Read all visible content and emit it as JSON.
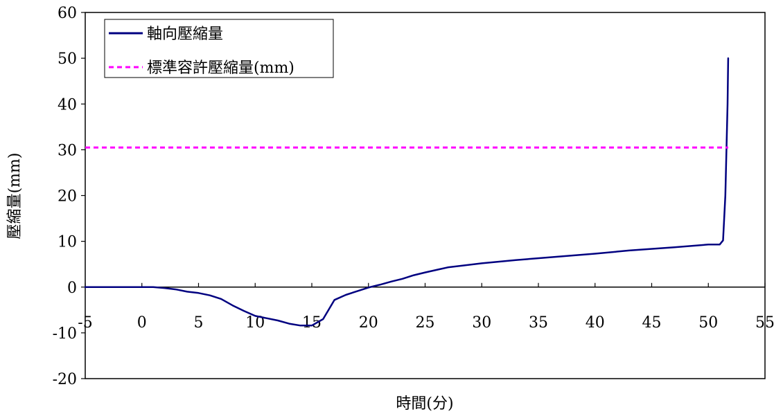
{
  "chart_data": {
    "type": "line",
    "xlabel": "時間(分)",
    "ylabel": "壓縮量(mm)",
    "xlim": [
      -5,
      55
    ],
    "ylim": [
      -20,
      60
    ],
    "x_ticks": [
      -5,
      0,
      5,
      10,
      15,
      20,
      25,
      30,
      35,
      40,
      45,
      50,
      55
    ],
    "y_ticks": [
      -20,
      -10,
      0,
      10,
      20,
      30,
      40,
      50,
      60
    ],
    "x_tick_labels": [
      "-5",
      "0",
      "5",
      "10",
      "15",
      "20",
      "25",
      "30",
      "35",
      "40",
      "45",
      "50",
      "55"
    ],
    "y_tick_labels": [
      "-20",
      "-10",
      "0",
      "10",
      "20",
      "30",
      "40",
      "50",
      "60"
    ],
    "grid": false,
    "legend_position": "top-left",
    "series": [
      {
        "name": "軸向壓縮量",
        "color": "#000080",
        "style": "solid",
        "x": [
          -5,
          0,
          1,
          2,
          3,
          4,
          5,
          6,
          7,
          8,
          9,
          10,
          11,
          12,
          13,
          14,
          15,
          16,
          17,
          18,
          19,
          20,
          21,
          22,
          23,
          24,
          25,
          27,
          30,
          33,
          36,
          40,
          43,
          47,
          50,
          50.5,
          51,
          51.3,
          51.5,
          51.6,
          51.7,
          51.75
        ],
        "y": [
          0,
          0,
          0,
          -0.2,
          -0.5,
          -1.0,
          -1.3,
          -1.8,
          -2.6,
          -4.0,
          -5.2,
          -6.3,
          -6.8,
          -7.3,
          -8.0,
          -8.4,
          -8.4,
          -7.0,
          -2.8,
          -1.7,
          -0.9,
          -0.1,
          0.5,
          1.2,
          1.8,
          2.6,
          3.2,
          4.3,
          5.2,
          5.9,
          6.5,
          7.3,
          8.0,
          8.7,
          9.3,
          9.3,
          9.3,
          10.2,
          20.0,
          30.0,
          40.0,
          50.0
        ]
      },
      {
        "name": "標準容許壓縮量(mm)",
        "color": "#ff00ff",
        "style": "dashed",
        "x": [
          -5,
          51.75
        ],
        "y": [
          30.5,
          30.5
        ]
      }
    ]
  }
}
